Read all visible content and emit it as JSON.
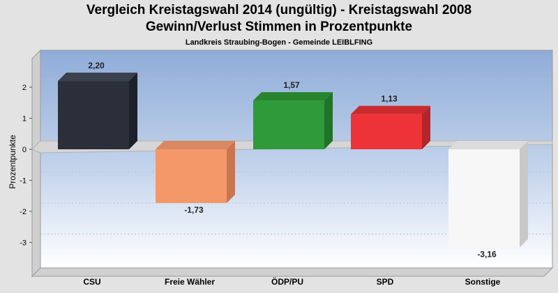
{
  "titles": {
    "line1": "Vergleich Kreistagswahl 2014 (ungültig) - Kreistagswahl 2008",
    "line2": "Gewinn/Verlust Stimmen in Prozentpunkte",
    "subtitle": "Landkreis Straubing-Bogen - Gemeinde LEIBLFING"
  },
  "chart_data": {
    "type": "bar",
    "title": "Vergleich Kreistagswahl 2014 (ungültig) - Kreistagswahl 2008",
    "subtitle": "Gewinn/Verlust Stimmen in Prozentpunkte",
    "xlabel": "",
    "ylabel": "Prozentpunkte",
    "ylim": [
      -3.9,
      3.2
    ],
    "yticks": [
      2,
      1,
      0,
      -1,
      -2,
      -3
    ],
    "ytick_labels": [
      "2",
      "1",
      "0",
      "-1",
      "-2",
      "-3"
    ],
    "categories": [
      "CSU",
      "Freie Wähler",
      "ÖDP/PU",
      "SPD",
      "Sonstige"
    ],
    "values": [
      2.2,
      -1.73,
      1.57,
      1.13,
      -3.16
    ],
    "value_labels": [
      "2,20",
      "-1,73",
      "1,57",
      "1,13",
      "-3,16"
    ],
    "colors": [
      "#2a2f3a",
      "#f4986a",
      "#2e9a3a",
      "#ee3338",
      "#f7f7f7"
    ],
    "side_colors": [
      "#1c2028",
      "#c87650",
      "#207328",
      "#b52428",
      "#c8c8c8"
    ],
    "top_colors": [
      "#3a404c",
      "#d98862",
      "#27842f",
      "#cc2b2e",
      "#dcdcdc"
    ],
    "grid": true,
    "legend": "none"
  }
}
